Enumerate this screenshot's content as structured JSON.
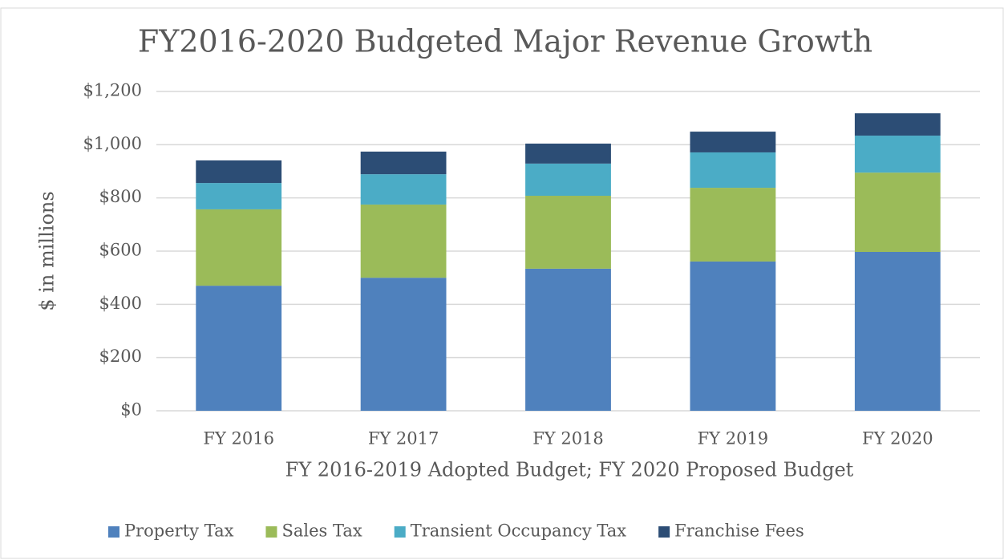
{
  "chart_data": {
    "type": "bar",
    "stacked": true,
    "title": "FY2016-2020 Budgeted Major Revenue Growth",
    "xlabel": "FY 2016-2019 Adopted Budget; FY 2020 Proposed Budget",
    "ylabel": "$ in millions",
    "categories": [
      "FY 2016",
      "FY 2017",
      "FY 2018",
      "FY 2019",
      "FY 2020"
    ],
    "series": [
      {
        "name": "Property Tax",
        "color": "#4f81bd",
        "values": [
          470,
          500,
          534,
          561,
          597
        ]
      },
      {
        "name": "Sales Tax",
        "color": "#9bbb59",
        "values": [
          287,
          275,
          274,
          277,
          298
        ]
      },
      {
        "name": "Transient Occupancy Tax",
        "color": "#4bacc6",
        "values": [
          99,
          114,
          121,
          133,
          139
        ]
      },
      {
        "name": "Franchise Fees",
        "color": "#2c4d75",
        "values": [
          85,
          85,
          75,
          78,
          84
        ]
      }
    ],
    "ylim": [
      0,
      1200
    ],
    "yticks": [
      {
        "value": 0,
        "label": "$0"
      },
      {
        "value": 200,
        "label": "$200"
      },
      {
        "value": 400,
        "label": "$400"
      },
      {
        "value": 600,
        "label": "$600"
      },
      {
        "value": 800,
        "label": "$800"
      },
      {
        "value": 1000,
        "label": "$1,000"
      },
      {
        "value": 1200,
        "label": "$1,200"
      }
    ],
    "grid": true,
    "legend": "bottom"
  }
}
